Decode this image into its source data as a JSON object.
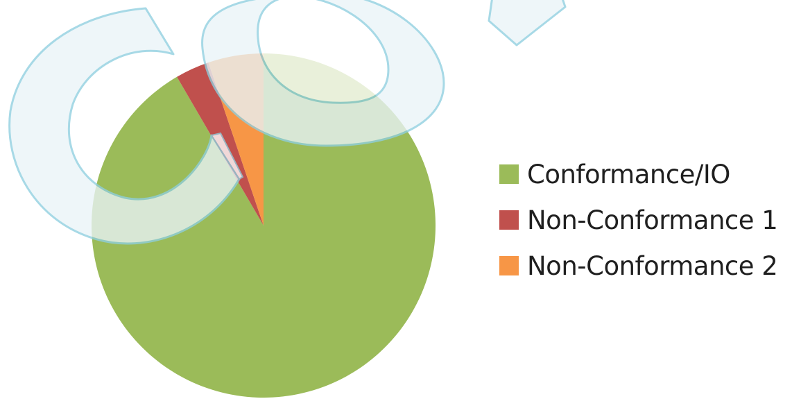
{
  "chart_data": {
    "type": "pie",
    "title": "",
    "series": [
      {
        "values": [
          91.6,
          3.2,
          5.2
        ]
      }
    ],
    "categories": [
      "Conformance/IO",
      "Non-Conformance 1",
      "Non-Conformance 2"
    ],
    "colors": [
      "#9BBB59",
      "#C0504D",
      "#F79646"
    ],
    "start_angle_deg": 0,
    "direction": "clockwise",
    "legend_position": "right"
  },
  "legend": {
    "items": [
      {
        "label": "Conformance/IO",
        "color": "#9BBB59"
      },
      {
        "label": "Non-Conformance 1",
        "color": "#C0504D"
      },
      {
        "label": "Non-Conformance 2",
        "color": "#F79646"
      }
    ]
  },
  "watermark": {
    "text": "COP",
    "stroke_color": "#8FCFE0",
    "fill_color": "#EAF4F8"
  }
}
